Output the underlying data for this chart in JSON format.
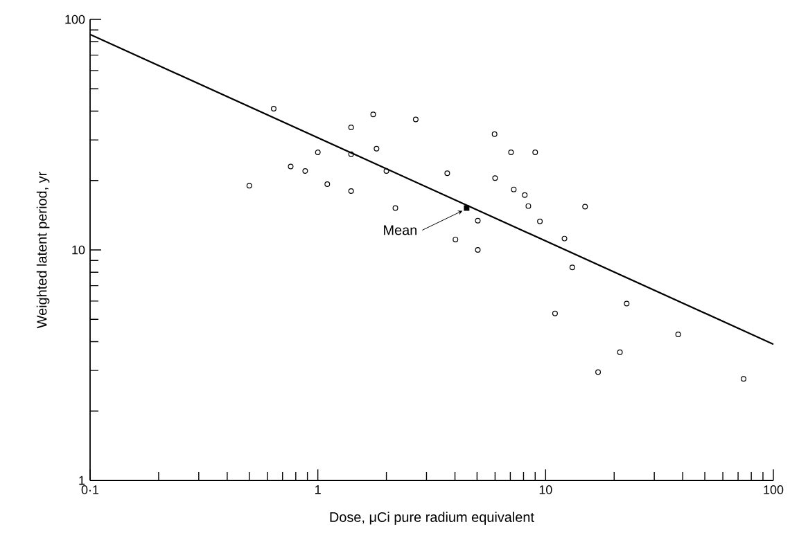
{
  "chart_data": {
    "type": "scatter",
    "xlabel": "Dose,  μCi pure radium equivalent",
    "ylabel": "Weighted latent period,   yr",
    "log": "xy",
    "xlim": [
      0.1,
      100
    ],
    "ylim": [
      1,
      100
    ],
    "xticks": [
      {
        "value": 0.1,
        "label": "0·1"
      },
      1,
      10,
      100
    ],
    "yticks": [
      1,
      10,
      100
    ],
    "grid": false,
    "series": [
      {
        "color": "#000000",
        "marker": "circle",
        "x": [
          0.5,
          0.64,
          0.76,
          0.88,
          1.0,
          1.1,
          1.4,
          1.4,
          1.4,
          1.75,
          1.81,
          2.0,
          2.19,
          2.69,
          3.7,
          4.02,
          5.04,
          5.04,
          5.97,
          6.0,
          7.05,
          7.25,
          8.1,
          8.4,
          9.0,
          9.44,
          11.0,
          12.1,
          13.1,
          14.9,
          17.0,
          21.2,
          22.7,
          38.2,
          74
        ],
        "values": [
          19,
          41,
          23,
          22,
          26.5,
          19.3,
          34,
          26,
          18,
          38.7,
          27.5,
          22,
          15.2,
          36.8,
          21.5,
          11.1,
          13.4,
          10.0,
          31.8,
          20.5,
          26.5,
          18.3,
          17.3,
          15.5,
          26.5,
          13.3,
          5.3,
          11.2,
          8.4,
          15.4,
          2.95,
          3.6,
          5.85,
          4.3,
          2.76
        ]
      },
      {
        "type": "line",
        "color": "#000000",
        "marker": "none",
        "x": [
          0.1,
          100
        ],
        "values": [
          86,
          3.9
        ]
      },
      {
        "type": "scatter",
        "color": "#000000",
        "marker": "square",
        "x": [
          4.5
        ],
        "values": [
          15.2
        ]
      }
    ],
    "annotations": [
      {
        "text": "Mean",
        "x": 4.5,
        "y": 15.2
      }
    ]
  }
}
